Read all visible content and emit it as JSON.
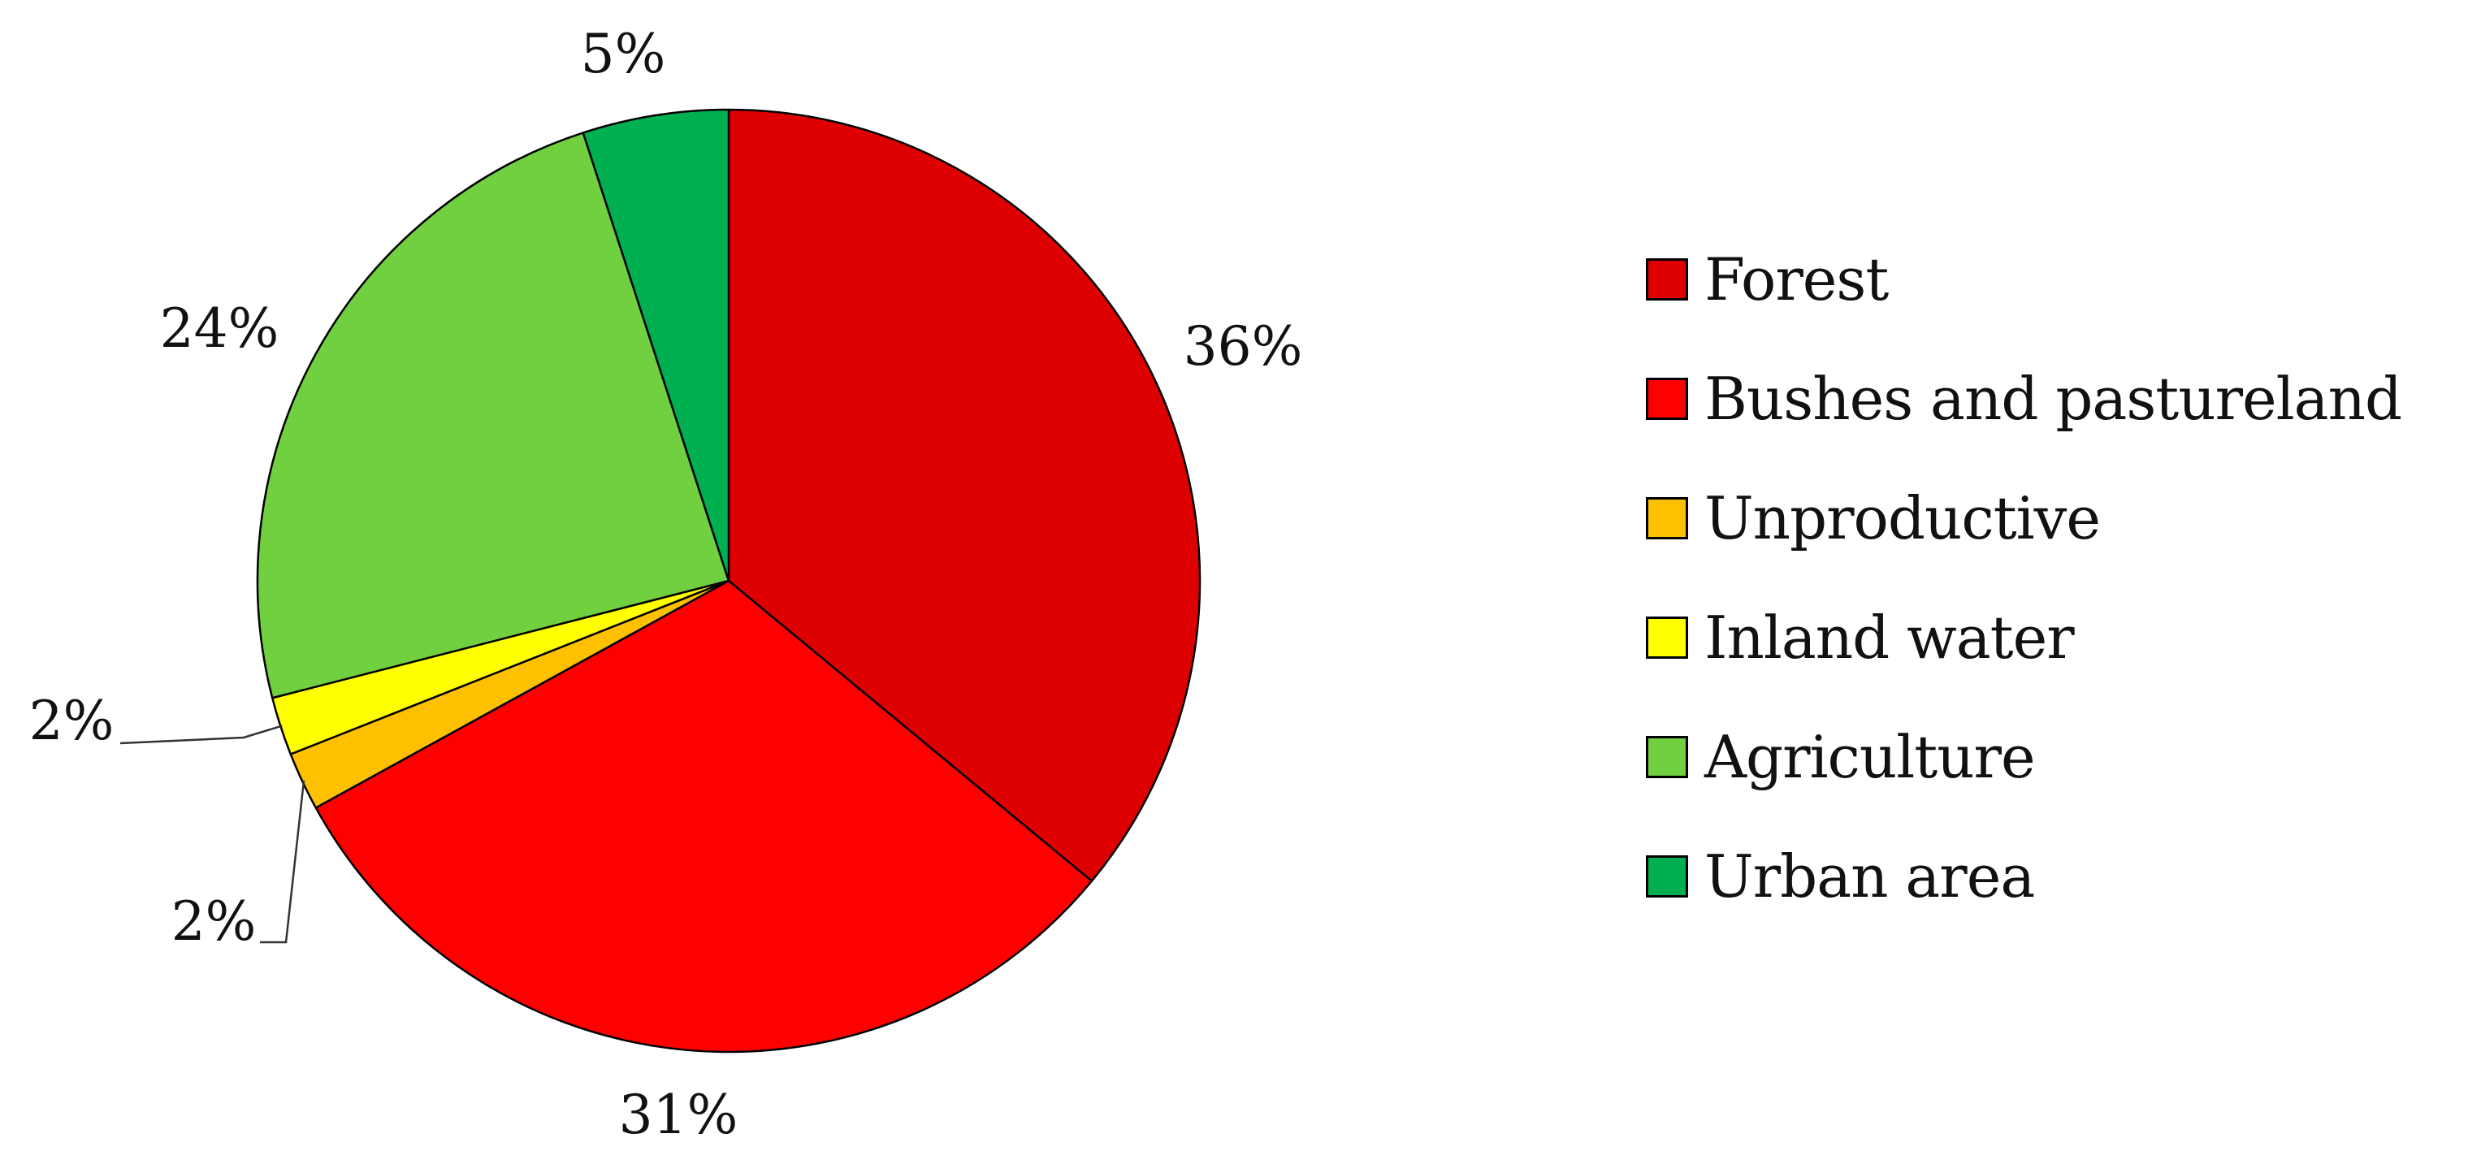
{
  "chart_data": {
    "type": "pie",
    "categories": [
      "Forest",
      "Bushes and pastureland",
      "Unproductive",
      "Inland water",
      "Agriculture",
      "Urban area"
    ],
    "values": [
      36,
      31,
      2,
      2,
      24,
      5
    ],
    "data_labels": [
      "36%",
      "31%",
      "2%",
      "2%",
      "24%",
      "5%"
    ],
    "colors": [
      "#de0000",
      "#ff0000",
      "#ffc000",
      "#ffff00",
      "#70d040",
      "#00b050"
    ],
    "title": "",
    "legend_position": "right",
    "start_angle": "12 o'clock",
    "direction": "clockwise"
  }
}
